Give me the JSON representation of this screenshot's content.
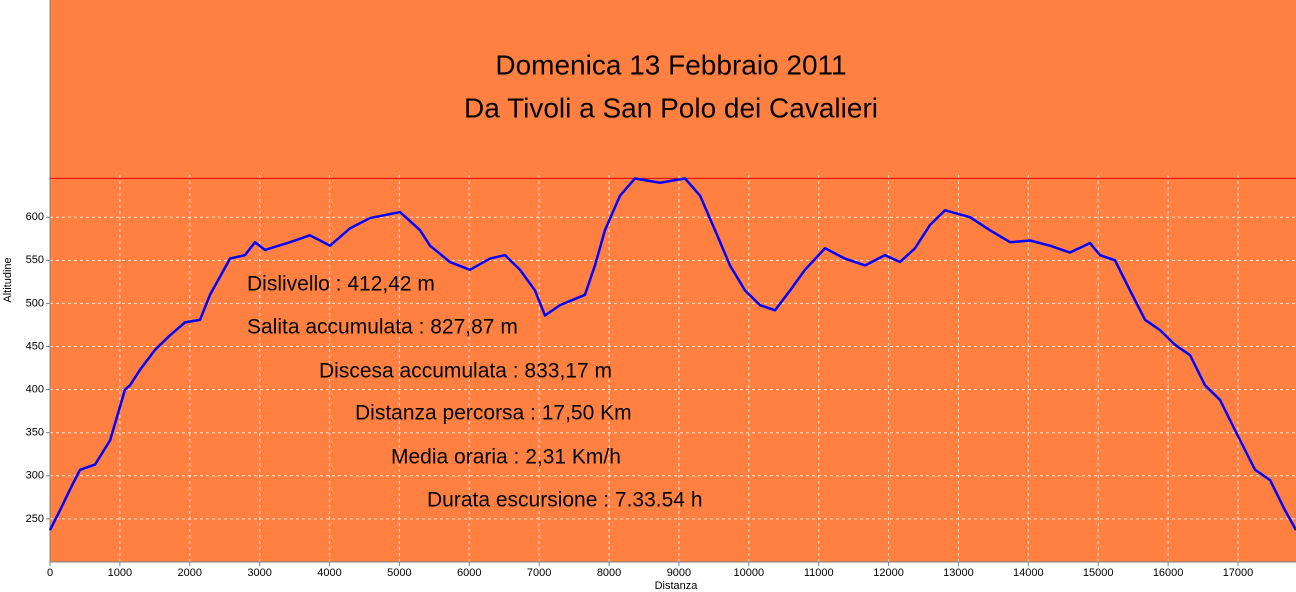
{
  "chart_data": {
    "type": "line",
    "title": [
      "Domenica 13 Febbraio 2011",
      "Da Tivoli a San Polo dei Cavalieri"
    ],
    "x_label": "Distanza",
    "y_label": "Altitudine",
    "annotations": [
      "Dislivello : 412,42 m",
      "Salita accumulata : 827,87 m",
      "Discesa accumulata : 833,17 m",
      "Distanza percorsa : 17,50 Km",
      "Media oraria : 2,31 Km/h",
      "Durata escursione : 7.33.54 h"
    ],
    "xlim": [
      0,
      17830
    ],
    "ylim": [
      200,
      852
    ],
    "xticks": [
      0,
      1000,
      2000,
      3000,
      4000,
      5000,
      6000,
      7000,
      8000,
      9000,
      10000,
      11000,
      12000,
      13000,
      14000,
      15000,
      16000,
      17000
    ],
    "yticks": [
      250,
      300,
      350,
      400,
      450,
      500,
      550,
      600
    ],
    "grid": true,
    "background": "#ff8040",
    "series": [
      {
        "color": "#0000ff",
        "x": [
          0,
          143,
          286,
          429,
          644,
          859,
          1073,
          1145,
          1288,
          1502,
          1717,
          1932,
          2147,
          2290,
          2576,
          2790,
          2933,
          3076,
          3434,
          3720,
          4006,
          4292,
          4578,
          5009,
          5295,
          5438,
          5724,
          6009,
          6296,
          6511,
          6725,
          6940,
          7083,
          7298,
          7655,
          7798,
          7942,
          8157,
          8371,
          8729,
          9087,
          9302,
          9516,
          9731,
          9946,
          10160,
          10375,
          10590,
          10804,
          11090,
          11376,
          11662,
          11948,
          12163,
          12378,
          12593,
          12807,
          13165,
          13450,
          13738,
          14024,
          14310,
          14596,
          14882,
          15025,
          15240,
          15455,
          15670,
          15884,
          16099,
          16314,
          16528,
          16743,
          16957,
          17244,
          17459,
          17673,
          17830
        ],
        "values": [
          237,
          260,
          284,
          307,
          313,
          341,
          400,
          405,
          423,
          446,
          463,
          478,
          481,
          510,
          552,
          556,
          571,
          562,
          571,
          579,
          567,
          587,
          599,
          606,
          585,
          567,
          548,
          539,
          552,
          556,
          539,
          515,
          486,
          498,
          510,
          544,
          585,
          625,
          645,
          640,
          645,
          625,
          585,
          544,
          515,
          498,
          492,
          515,
          539,
          564,
          552,
          544,
          556,
          548,
          564,
          591,
          608,
          600,
          585,
          571,
          573,
          567,
          559,
          570,
          556,
          550,
          515,
          481,
          469,
          452,
          440,
          405,
          388,
          353,
          307,
          295,
          260,
          237
        ]
      }
    ]
  }
}
